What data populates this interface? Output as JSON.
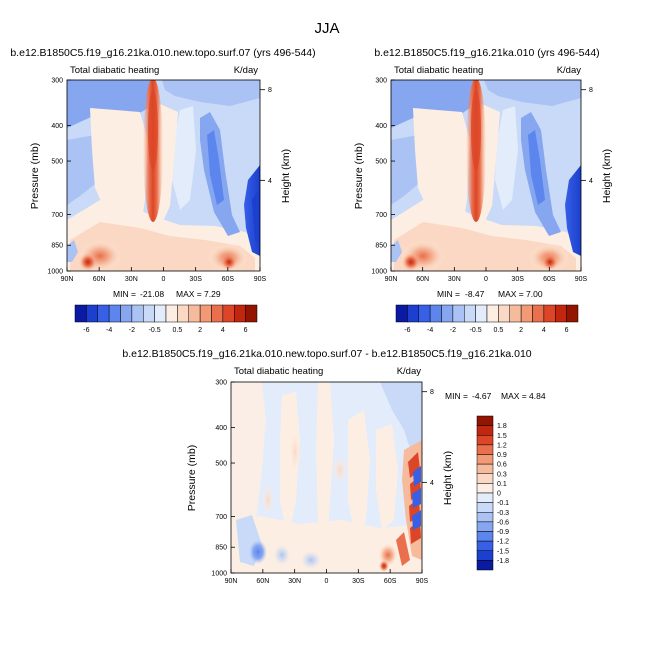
{
  "figure": {
    "suptitle": "JJA",
    "contour_colors": [
      "#0b1aa3",
      "#1b3fce",
      "#3760e6",
      "#5c86ee",
      "#86a6f0",
      "#aac3f4",
      "#c8daf7",
      "#e3ecfb",
      "#fdeee3",
      "#fbd8c3",
      "#f6bb9d",
      "#f29a76",
      "#ea6f4c",
      "#dc4527",
      "#c2260f",
      "#931400"
    ]
  },
  "chart_data": [
    {
      "type": "heatmap",
      "title": "b.e12.B1850C5.f19_g16.21ka.010.new.topo.surf.07 (yrs 496-544)",
      "left_label": "Total diabatic heating",
      "right_label": "K/day",
      "ylabel": "Pressure (mb)",
      "y2label": "Height (km)",
      "x_ticks": [
        "90N",
        "60N",
        "30N",
        "0",
        "30S",
        "60S",
        "90S"
      ],
      "y_ticks": [
        "300",
        "400",
        "500",
        "700",
        "850",
        "1000"
      ],
      "y2_ticks": [
        "8",
        "4"
      ],
      "stats": {
        "min_label": "MIN =",
        "min": "-21.08",
        "max_label": "MAX =",
        "max": "7.29"
      },
      "colorbar": {
        "orientation": "horizontal",
        "tick_labels": [
          "-6",
          "-4",
          "-2",
          "-0.5",
          "0.5",
          "2",
          "4",
          "6"
        ]
      }
    },
    {
      "type": "heatmap",
      "title": "b.e12.B1850C5.f19_g16.21ka.010 (yrs 496-544)",
      "left_label": "Total diabatic heating",
      "right_label": "K/day",
      "ylabel": "Pressure (mb)",
      "y2label": "Height (km)",
      "x_ticks": [
        "90N",
        "60N",
        "30N",
        "0",
        "30S",
        "60S",
        "90S"
      ],
      "y_ticks": [
        "300",
        "400",
        "500",
        "700",
        "850",
        "1000"
      ],
      "y2_ticks": [
        "8",
        "4"
      ],
      "stats": {
        "min_label": "MIN =",
        "min": "-8.47",
        "max_label": "MAX =",
        "max": "7.00"
      },
      "colorbar": {
        "orientation": "horizontal",
        "tick_labels": [
          "-6",
          "-4",
          "-2",
          "-0.5",
          "0.5",
          "2",
          "4",
          "6"
        ]
      }
    },
    {
      "type": "heatmap",
      "title": "b.e12.B1850C5.f19_g16.21ka.010.new.topo.surf.07 - b.e12.B1850C5.f19_g16.21ka.010",
      "left_label": "Total diabatic heating",
      "right_label": "K/day",
      "ylabel": "Pressure (mb)",
      "y2label": "Height (km)",
      "x_ticks": [
        "90N",
        "60N",
        "30N",
        "0",
        "30S",
        "60S",
        "90S"
      ],
      "y_ticks": [
        "300",
        "400",
        "500",
        "700",
        "850",
        "1000"
      ],
      "y2_ticks": [
        "8",
        "4"
      ],
      "stats": {
        "min_label": "MIN =",
        "min": "-4.67",
        "max_label": "MAX =",
        "max": "4.84"
      },
      "colorbar": {
        "orientation": "vertical",
        "tick_labels": [
          "1.8",
          "1.5",
          "1.2",
          "0.9",
          "0.6",
          "0.3",
          "0.1",
          "0",
          "-0.1",
          "-0.3",
          "-0.6",
          "-0.9",
          "-1.2",
          "-1.5",
          "-1.8"
        ]
      }
    }
  ]
}
